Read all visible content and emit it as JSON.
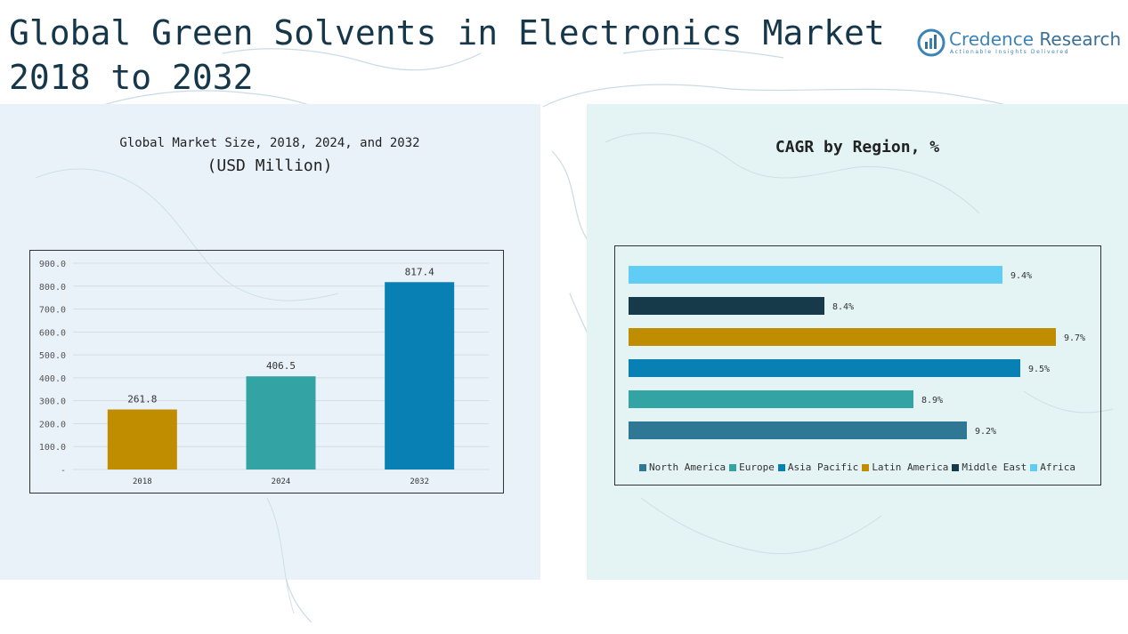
{
  "page": {
    "title": "Global Green Solvents in Electronics Market 2018 to 2032"
  },
  "logo": {
    "name_part1": "Credence",
    "name_part2": " Research",
    "tagline": "Actionable Insights Delivered"
  },
  "chart_data": [
    {
      "type": "bar",
      "title": "Global Market Size, 2018, 2024, and 2032",
      "subtitle": "(USD Million)",
      "categories": [
        "2018",
        "2024",
        "2032"
      ],
      "values": [
        261.8,
        406.5,
        817.4
      ],
      "data_labels": [
        "261.8",
        "406.5",
        "817.4"
      ],
      "colors": [
        "#c08c00",
        "#33a3a3",
        "#0880b4"
      ],
      "ylim": [
        0,
        900
      ],
      "yticks": [
        0,
        100,
        200,
        300,
        400,
        500,
        600,
        700,
        800,
        900
      ],
      "ytick_labels": [
        "-",
        "100.0",
        "200.0",
        "300.0",
        "400.0",
        "500.0",
        "600.0",
        "700.0",
        "800.0",
        "900.0"
      ],
      "grid": true
    },
    {
      "type": "bar",
      "orientation": "horizontal",
      "title": "CAGR by Region, %",
      "categories": [
        "North America",
        "Europe",
        "Asia Pacific",
        "Latin America",
        "Middle East",
        "Africa"
      ],
      "values": [
        9.2,
        8.9,
        9.5,
        9.7,
        8.4,
        9.4
      ],
      "data_labels": [
        "9.2%",
        "8.9%",
        "9.5%",
        "9.7%",
        "8.4%",
        "9.4%"
      ],
      "colors": [
        "#2e7896",
        "#33a3a3",
        "#0880b4",
        "#c08c00",
        "#173a4b",
        "#61cdf5"
      ],
      "xlim": [
        7.3,
        9.75
      ],
      "legend": "bottom",
      "grid": false
    }
  ]
}
